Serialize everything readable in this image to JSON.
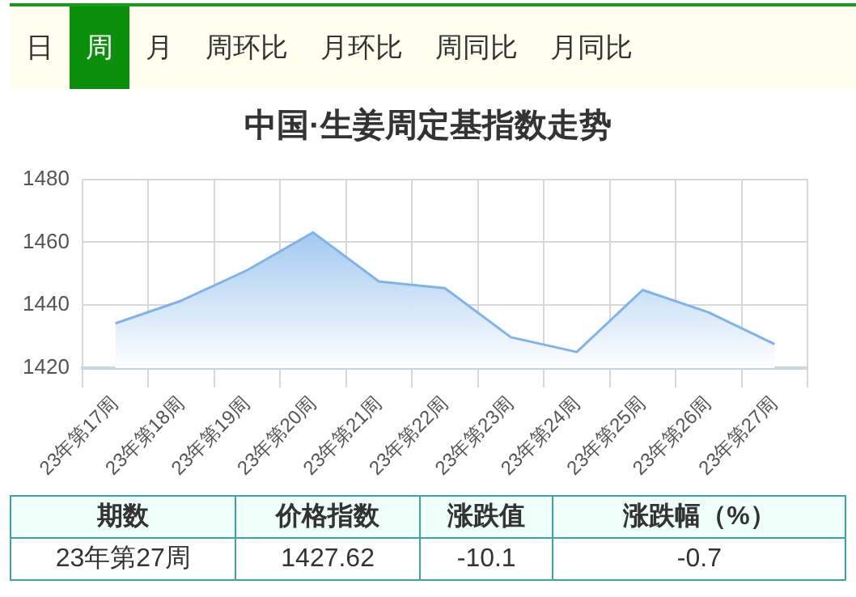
{
  "chart_data": {
    "type": "area",
    "title": "中国·生姜周定基指数走势",
    "categories": [
      "23年第17周",
      "23年第18周",
      "23年第19周",
      "23年第20周",
      "23年第21周",
      "23年第22周",
      "23年第23周",
      "23年第24周",
      "23年第25周",
      "23年第26周",
      "23年第27周"
    ],
    "series": [
      {
        "color": "#7fb4ea",
        "values": [
          1434.2,
          1441.4,
          1451.1,
          1463.1,
          1447.5,
          1445.4,
          1429.8,
          1425.1,
          1444.8,
          1437.7,
          1427.62
        ]
      }
    ],
    "ylim": [
      1420,
      1480
    ],
    "yticks": [
      1420,
      1440,
      1460,
      1480
    ],
    "grid": true,
    "legend": false,
    "annotations": [
      "日",
      "周",
      "月",
      "周环比",
      "月环比",
      "周同比",
      "月同比",
      "期数",
      "价格指数",
      "涨跌值",
      "涨跌幅（%）",
      "23年第27周",
      "1427.62",
      "-10.1",
      "-0.7"
    ]
  }
}
